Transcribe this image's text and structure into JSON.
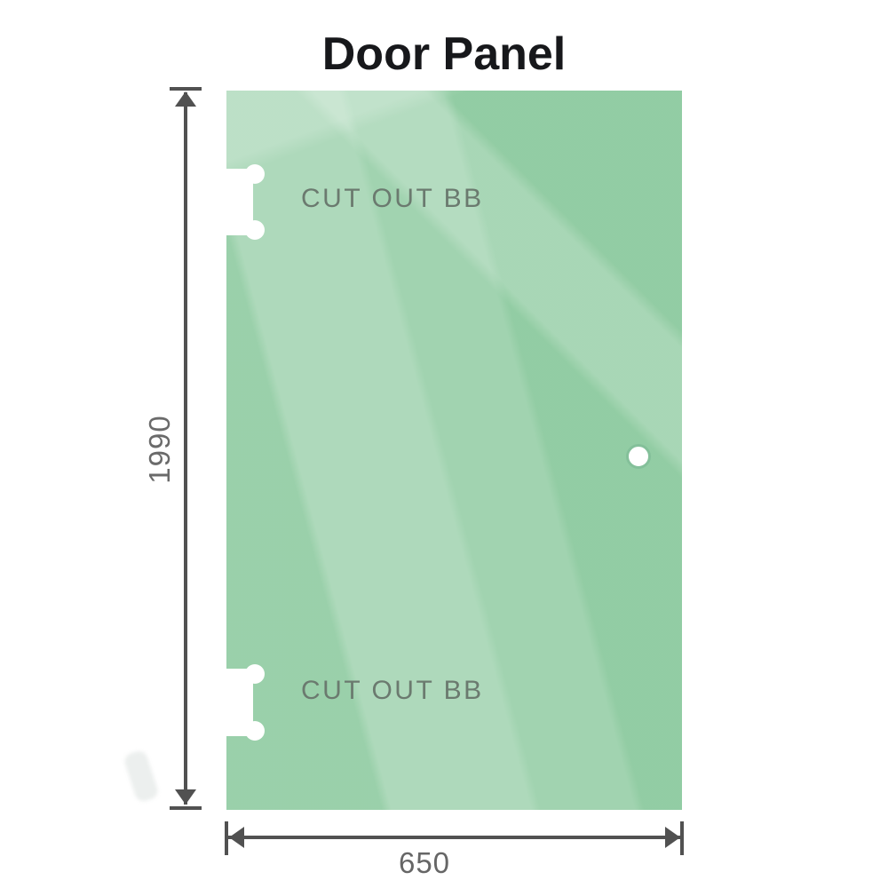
{
  "title": "Door Panel",
  "panel": {
    "type": "glass-door-panel",
    "cutouts": [
      {
        "label": "CUT OUT BB",
        "position": "top-left"
      },
      {
        "label": "CUT OUT BB",
        "position": "bottom-left"
      }
    ],
    "handle_hole": {
      "position": "middle-right"
    }
  },
  "dimensions": {
    "height": {
      "value": "1990",
      "orientation": "vertical"
    },
    "width": {
      "value": "650",
      "orientation": "horizontal"
    }
  },
  "colors": {
    "glass_base": "#8fcba1",
    "dimension_line": "#515151",
    "cutout_label_text": "#6b7a6f",
    "dimension_label_text": "#6a6a6a",
    "title_text": "#17181b"
  }
}
